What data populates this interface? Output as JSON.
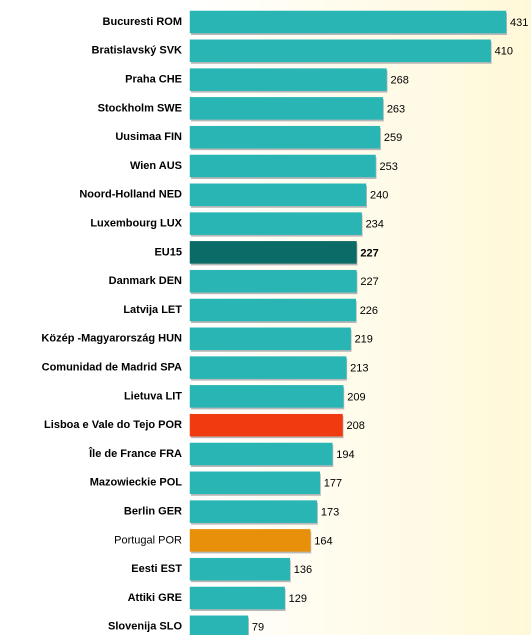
{
  "chart_data": {
    "type": "bar",
    "orientation": "horizontal",
    "categories": [
      "Bucuresti  ROM",
      "Bratislavský  SVK",
      "Praha  CHE",
      "Stockholm  SWE",
      "Uusimaa  FIN",
      "Wien  AUS",
      "Noord-Holland  NED",
      "Luxembourg  LUX",
      "EU15",
      "Danmark  DEN",
      "Latvija  LET",
      "Közép -Magyarország  HUN",
      "Comunidad de Madrid  SPA",
      "Lietuva  LIT",
      "Lisboa e Vale do Tejo  POR",
      "Île de France  FRA",
      "Mazowieckie  POL",
      "Berlin  GER",
      "Portugal  POR",
      "Eesti  EST",
      "Attiki  GRE",
      "Slovenija  SLO"
    ],
    "values": [
      431,
      410,
      268,
      263,
      259,
      253,
      240,
      234,
      227,
      227,
      226,
      219,
      213,
      209,
      208,
      194,
      177,
      173,
      164,
      136,
      129,
      79
    ],
    "colors": [
      "#2ab5b5",
      "#2ab5b5",
      "#2ab5b5",
      "#2ab5b5",
      "#2ab5b5",
      "#2ab5b5",
      "#2ab5b5",
      "#2ab5b5",
      "#0b6b66",
      "#2ab5b5",
      "#2ab5b5",
      "#2ab5b5",
      "#2ab5b5",
      "#2ab5b5",
      "#f03a10",
      "#2ab5b5",
      "#2ab5b5",
      "#2ab5b5",
      "#e8900a",
      "#2ab5b5",
      "#2ab5b5",
      "#2ab5b5"
    ]
  }
}
